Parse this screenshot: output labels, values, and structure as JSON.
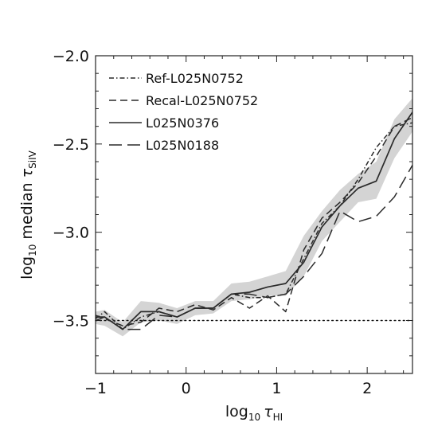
{
  "chart_data": {
    "type": "line",
    "xlabel": {
      "prefix": "log",
      "base": "10",
      "symbol": "τ",
      "subscript": "HI"
    },
    "ylabel": {
      "prefix": "log",
      "base": "10",
      "text": " median ",
      "symbol": "τ",
      "subscript": "SiIV"
    },
    "xlim": [
      -1.0,
      2.5
    ],
    "ylim": [
      -3.8,
      -2.0
    ],
    "x_ticks": [
      -1,
      0,
      1,
      2
    ],
    "x_tick_labels": [
      "−1",
      "0",
      "1",
      "2"
    ],
    "y_ticks": [
      -3.5,
      -3.0,
      -2.5,
      -2.0
    ],
    "y_tick_labels": [
      "−3.5",
      "−3.0",
      "−2.5",
      "−2.0"
    ],
    "grid": false,
    "legend_position": "top-left",
    "reference_line": {
      "y": -3.5,
      "style": "dotted"
    },
    "band": {
      "x": [
        -1.0,
        -0.9,
        -0.7,
        -0.5,
        -0.3,
        -0.1,
        0.1,
        0.3,
        0.5,
        0.7,
        0.9,
        1.1,
        1.3,
        1.5,
        1.7,
        1.9,
        2.1,
        2.3,
        2.5
      ],
      "low": [
        -3.52,
        -3.53,
        -3.59,
        -3.51,
        -3.5,
        -3.52,
        -3.47,
        -3.46,
        -3.39,
        -3.38,
        -3.36,
        -3.36,
        -3.25,
        -3.05,
        -2.94,
        -2.83,
        -2.81,
        -2.58,
        -2.43
      ],
      "high": [
        -3.45,
        -3.44,
        -3.51,
        -3.39,
        -3.4,
        -3.43,
        -3.39,
        -3.39,
        -3.29,
        -3.28,
        -3.25,
        -3.22,
        -3.02,
        -2.88,
        -2.76,
        -2.67,
        -2.6,
        -2.36,
        -2.24
      ],
      "color": "#d4d4d4"
    },
    "series": [
      {
        "name": "Ref-L025N0752",
        "style": "dashdot",
        "x": [
          -1.0,
          -0.9,
          -0.7,
          -0.5,
          -0.3,
          -0.1,
          0.1,
          0.3,
          0.5,
          0.7,
          0.9,
          1.1,
          1.3,
          1.5,
          1.7,
          1.9,
          2.1,
          2.3,
          2.5
        ],
        "y": [
          -3.49,
          -3.45,
          -3.55,
          -3.48,
          -3.45,
          -3.48,
          -3.43,
          -3.43,
          -3.35,
          -3.37,
          -3.37,
          -3.35,
          -3.15,
          -2.95,
          -2.85,
          -2.7,
          -2.52,
          -2.4,
          -2.38
        ]
      },
      {
        "name": "Recal-L025N0752",
        "style": "dashed",
        "x": [
          -1.0,
          -0.9,
          -0.7,
          -0.5,
          -0.3,
          -0.1,
          0.1,
          0.3,
          0.5,
          0.7,
          0.9,
          1.1,
          1.3,
          1.5,
          1.7,
          1.9,
          2.1,
          2.3,
          2.5
        ],
        "y": [
          -3.47,
          -3.49,
          -3.53,
          -3.51,
          -3.43,
          -3.45,
          -3.41,
          -3.44,
          -3.37,
          -3.43,
          -3.36,
          -3.45,
          -3.1,
          -2.92,
          -2.83,
          -2.72,
          -2.57,
          -2.4,
          -2.35
        ]
      },
      {
        "name": "L025N0376",
        "style": "solid",
        "x": [
          -1.0,
          -0.9,
          -0.7,
          -0.5,
          -0.3,
          -0.1,
          0.1,
          0.3,
          0.5,
          0.7,
          0.9,
          1.1,
          1.3,
          1.5,
          1.7,
          1.9,
          2.1,
          2.3,
          2.5
        ],
        "y": [
          -3.48,
          -3.48,
          -3.55,
          -3.45,
          -3.45,
          -3.48,
          -3.43,
          -3.43,
          -3.35,
          -3.34,
          -3.31,
          -3.29,
          -3.17,
          -2.97,
          -2.85,
          -2.75,
          -2.71,
          -2.47,
          -2.32
        ]
      },
      {
        "name": "L025N0188",
        "style": "longdash",
        "x": [
          -1.0,
          -0.9,
          -0.7,
          -0.5,
          -0.3,
          -0.1,
          0.1,
          0.3,
          0.5,
          0.7,
          0.9,
          1.1,
          1.3,
          1.5,
          1.7,
          1.9,
          2.1,
          2.3,
          2.5
        ],
        "y": [
          -3.5,
          -3.48,
          -3.55,
          -3.55,
          -3.47,
          -3.48,
          -3.43,
          -3.43,
          -3.35,
          -3.35,
          -3.37,
          -3.35,
          -3.25,
          -3.12,
          -2.88,
          -2.94,
          -2.91,
          -2.8,
          -2.62
        ]
      }
    ]
  }
}
